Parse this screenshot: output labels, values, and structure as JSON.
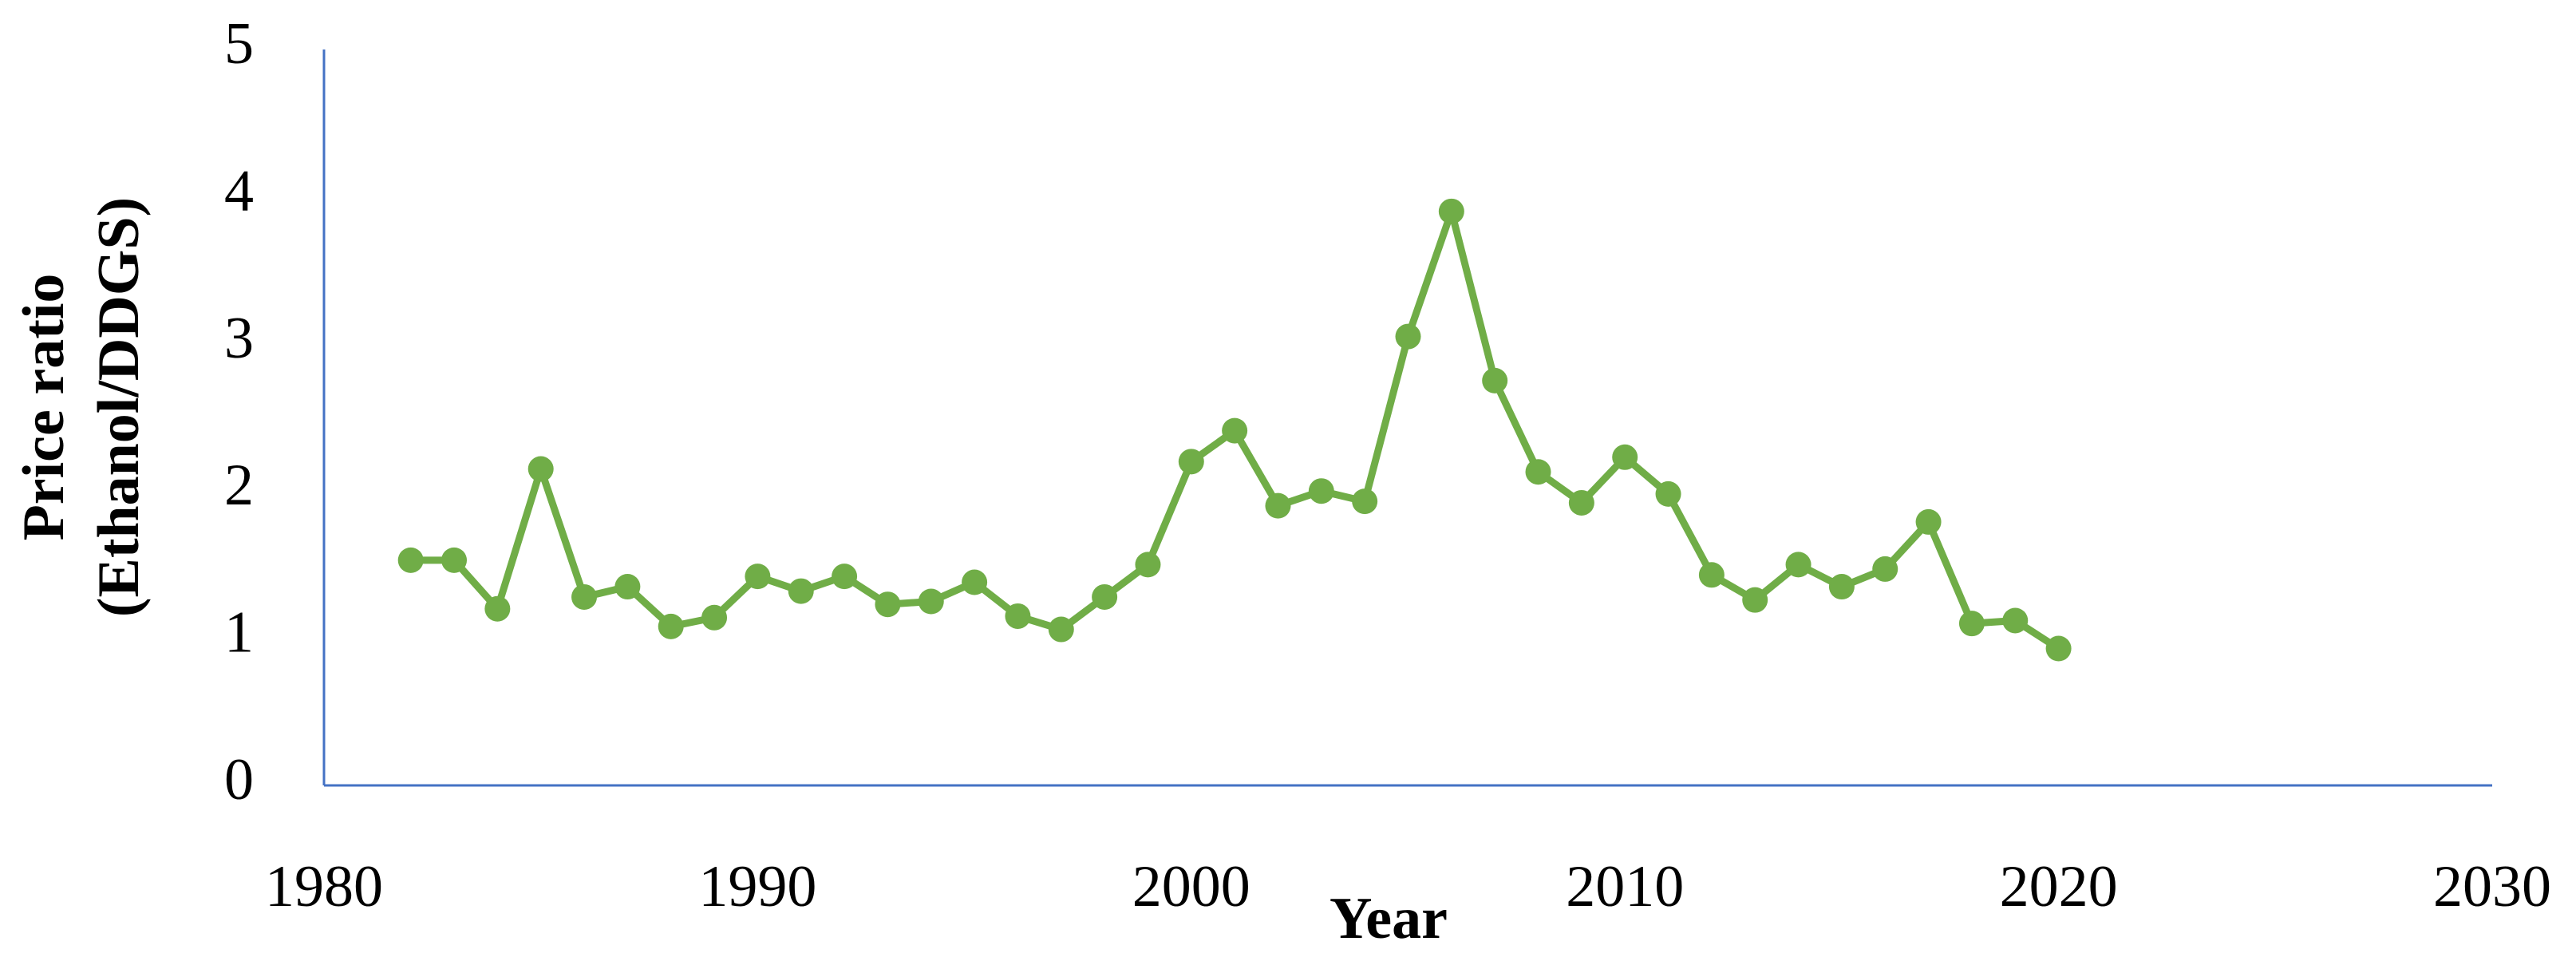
{
  "chart_data": {
    "type": "line",
    "xlabel": "Year",
    "ylabel": [
      "Price ratio",
      "(Ethanol/DDGS)"
    ],
    "x": [
      1982,
      1983,
      1984,
      1985,
      1986,
      1987,
      1988,
      1989,
      1990,
      1991,
      1992,
      1993,
      1994,
      1995,
      1996,
      1997,
      1998,
      1999,
      2000,
      2001,
      2002,
      2003,
      2004,
      2005,
      2006,
      2007,
      2008,
      2009,
      2010,
      2011,
      2012,
      2013,
      2014,
      2015,
      2016,
      2017,
      2018,
      2019,
      2020
    ],
    "series": [
      {
        "color": "#70ad47",
        "values": [
          1.53,
          1.53,
          1.2,
          2.15,
          1.28,
          1.35,
          1.08,
          1.14,
          1.42,
          1.32,
          1.42,
          1.23,
          1.25,
          1.38,
          1.15,
          1.06,
          1.28,
          1.5,
          2.2,
          2.41,
          1.9,
          2.0,
          1.93,
          3.05,
          3.9,
          2.75,
          2.13,
          1.92,
          2.23,
          1.98,
          1.43,
          1.26,
          1.5,
          1.35,
          1.47,
          1.79,
          1.1,
          1.12,
          0.93
        ]
      }
    ],
    "xlim": [
      1980,
      2030
    ],
    "xticks": [
      1980,
      1990,
      2000,
      2010,
      2020,
      2030
    ],
    "ylim": [
      0,
      5
    ],
    "yticks": [
      0,
      1,
      2,
      3,
      4,
      5
    ],
    "grid": false
  }
}
